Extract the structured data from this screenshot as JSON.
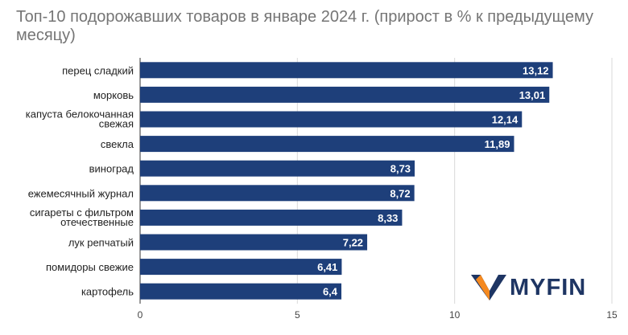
{
  "title": "Топ-10 подорожавших товаров в январе 2024 г. (прирост в % к предыдущему месяцу)",
  "brand": {
    "name": "MYFIN",
    "primary_color": "#1e3563",
    "accent_color": "#f5891f"
  },
  "chart_data": {
    "type": "bar",
    "orientation": "horizontal",
    "title": "Топ-10 подорожавших товаров в январе 2024 г. (прирост в % к предыдущему месяцу)",
    "categories": [
      "перец сладкий",
      "морковь",
      "капуста белокочанная свежая",
      "свекла",
      "виноград",
      "ежемесячный журнал",
      "сигареты с фильтром отечественные",
      "лук репчатый",
      "помидоры свежие",
      "картофель"
    ],
    "values": [
      13.12,
      13.01,
      12.14,
      11.89,
      8.73,
      8.72,
      8.33,
      7.22,
      6.41,
      6.4
    ],
    "value_labels": [
      "13,12",
      "13,01",
      "12,14",
      "11,89",
      "8,73",
      "8,72",
      "8,33",
      "7,22",
      "6,41",
      "6,4"
    ],
    "xlim": [
      0,
      15
    ],
    "xticks": [
      0,
      5,
      10,
      15
    ],
    "xtick_labels": [
      "0",
      "5",
      "10",
      "15"
    ],
    "grid": true,
    "bar_color": "#1e3f7a",
    "grid_color": "#d9d9d9"
  }
}
